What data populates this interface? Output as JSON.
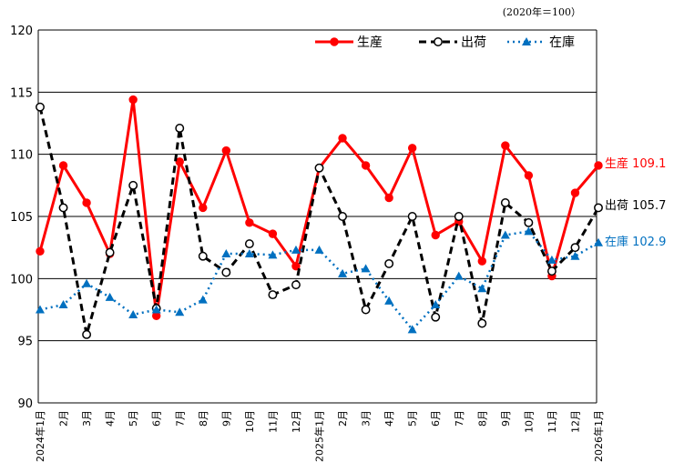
{
  "chart_data": {
    "type": "line",
    "note": "(2020年＝100）",
    "ylim": [
      90,
      120
    ],
    "yticks": [
      90,
      95,
      100,
      105,
      110,
      115,
      120
    ],
    "categories": [
      "2024年1月",
      "2月",
      "3月",
      "4月",
      "5月",
      "6月",
      "7月",
      "8月",
      "9月",
      "10月",
      "11月",
      "12月",
      "2025年1月",
      "2月",
      "3月",
      "4月",
      "5月",
      "6月",
      "7月",
      "8月",
      "9月",
      "10月",
      "11月",
      "12月",
      "2026年1月"
    ],
    "series": [
      {
        "name": "生産",
        "color": "#ff0000",
        "style": "solid",
        "marker": "circle-filled",
        "values": [
          102.2,
          109.1,
          106.1,
          102.0,
          114.4,
          97.0,
          109.4,
          105.7,
          110.3,
          104.5,
          103.6,
          101.0,
          108.9,
          111.3,
          109.1,
          106.5,
          110.5,
          103.5,
          104.6,
          101.4,
          110.7,
          108.3,
          100.2,
          106.9,
          109.1
        ],
        "end_label": "生産 109.1"
      },
      {
        "name": "出荷",
        "color": "#000000",
        "style": "dashed",
        "marker": "circle-open",
        "values": [
          113.8,
          105.7,
          95.5,
          102.1,
          107.5,
          97.6,
          112.1,
          101.8,
          100.5,
          102.8,
          98.7,
          99.5,
          108.9,
          105.0,
          97.5,
          101.2,
          105.0,
          96.9,
          105.0,
          96.4,
          106.1,
          104.5,
          100.6,
          102.5,
          105.7
        ],
        "end_label": "出荷 105.7"
      },
      {
        "name": "在庫",
        "color": "#0070c0",
        "style": "dotted",
        "marker": "triangle",
        "values": [
          97.5,
          97.9,
          99.6,
          98.5,
          97.1,
          97.5,
          97.3,
          98.3,
          102.0,
          102.0,
          101.9,
          102.3,
          102.3,
          100.4,
          100.8,
          98.2,
          95.9,
          97.9,
          100.2,
          99.2,
          103.5,
          103.8,
          101.5,
          101.8,
          102.9
        ],
        "end_label": "在庫 102.9"
      }
    ]
  }
}
